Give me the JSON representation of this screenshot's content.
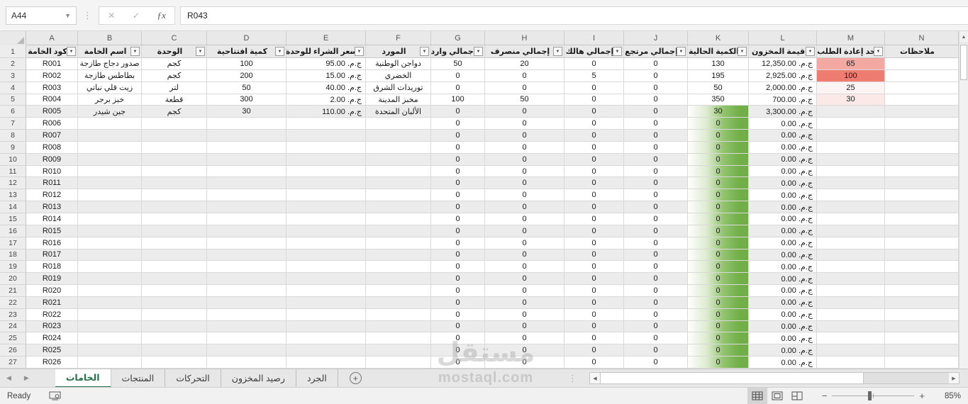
{
  "formula_bar": {
    "name_box": "A44",
    "cancel_icon": "✕",
    "enter_icon": "✓",
    "fx_icon": "ƒx",
    "formula": "R043"
  },
  "sheet": {
    "cols": [
      "A",
      "B",
      "C",
      "D",
      "E",
      "F",
      "G",
      "H",
      "I",
      "J",
      "K",
      "L",
      "M",
      "N"
    ],
    "header_row_number": "1",
    "headers": [
      {
        "col": "A",
        "label": "كود الخامة",
        "filter": true
      },
      {
        "col": "B",
        "label": "اسم الخامة",
        "filter": true
      },
      {
        "col": "C",
        "label": "الوحدة",
        "filter": true
      },
      {
        "col": "D",
        "label": "كمية افتتاحية",
        "filter": true
      },
      {
        "col": "E",
        "label": "سعر الشراء للوحدة",
        "filter": true
      },
      {
        "col": "F",
        "label": "المورد",
        "filter": true
      },
      {
        "col": "G",
        "label": "إجمالي وارد",
        "filter": true
      },
      {
        "col": "H",
        "label": "إجمالي منصرف",
        "filter": true
      },
      {
        "col": "I",
        "label": "إجمالي هالك",
        "filter": true
      },
      {
        "col": "J",
        "label": "إجمالي مرتجع",
        "filter": true
      },
      {
        "col": "K",
        "label": "الكمية الحالية",
        "filter": true
      },
      {
        "col": "L",
        "label": "قيمة المخزون",
        "filter": true
      },
      {
        "col": "M",
        "label": "حد إعادة الطلب",
        "filter": true
      },
      {
        "col": "N",
        "label": "ملاحظات",
        "filter": false
      }
    ],
    "filter_icon": "▼",
    "rows": [
      {
        "num": "2",
        "cells": [
          "R001",
          "صدور دجاج طازجة",
          "كجم",
          "100",
          "ج.م. 95.00",
          "دواجن الوطنية",
          "50",
          "20",
          "0",
          "0",
          "130",
          "ج.م. 12,350.00",
          "65",
          ""
        ],
        "k_bar": false,
        "m_bg": "#F4A8A2"
      },
      {
        "num": "3",
        "cells": [
          "R002",
          "بطاطس طازجة",
          "كجم",
          "200",
          "ج.م. 15.00",
          "الخضري",
          "0",
          "0",
          "5",
          "0",
          "195",
          "ج.م. 2,925.00",
          "100",
          ""
        ],
        "k_bar": false,
        "m_bg": "#EE7C70"
      },
      {
        "num": "4",
        "cells": [
          "R003",
          "زيت قلي نباتي",
          "لتر",
          "50",
          "ج.م. 40.00",
          "توريدات الشرق",
          "0",
          "0",
          "0",
          "0",
          "50",
          "ج.م. 2,000.00",
          "25",
          ""
        ],
        "k_bar": false,
        "m_bg": "#FCF4F3"
      },
      {
        "num": "5",
        "cells": [
          "R004",
          "خبز برجر",
          "قطعة",
          "300",
          "ج.م. 2.00",
          "مخبز المدينة",
          "100",
          "50",
          "0",
          "0",
          "350",
          "ج.م. 700.00",
          "30",
          ""
        ],
        "k_bar": false,
        "m_bg": "#FAE9E7"
      },
      {
        "num": "6",
        "cells": [
          "R005",
          "جبن شيدر",
          "كجم",
          "30",
          "ج.م. 110.00",
          "الألبان المتحدة",
          "0",
          "0",
          "0",
          "0",
          "30",
          "ج.م. 3,300.00",
          "",
          ""
        ],
        "k_bar": true,
        "m_bg": ""
      },
      {
        "num": "7",
        "cells": [
          "R006",
          "",
          "",
          "",
          "",
          "",
          "0",
          "0",
          "0",
          "0",
          "0",
          "ج.م. 0.00",
          "",
          ""
        ],
        "k_bar": true,
        "m_bg": ""
      },
      {
        "num": "8",
        "cells": [
          "R007",
          "",
          "",
          "",
          "",
          "",
          "0",
          "0",
          "0",
          "0",
          "0",
          "ج.م. 0.00",
          "",
          ""
        ],
        "k_bar": true,
        "m_bg": ""
      },
      {
        "num": "9",
        "cells": [
          "R008",
          "",
          "",
          "",
          "",
          "",
          "0",
          "0",
          "0",
          "0",
          "0",
          "ج.م. 0.00",
          "",
          ""
        ],
        "k_bar": true,
        "m_bg": ""
      },
      {
        "num": "10",
        "cells": [
          "R009",
          "",
          "",
          "",
          "",
          "",
          "0",
          "0",
          "0",
          "0",
          "0",
          "ج.م. 0.00",
          "",
          ""
        ],
        "k_bar": true,
        "m_bg": ""
      },
      {
        "num": "11",
        "cells": [
          "R010",
          "",
          "",
          "",
          "",
          "",
          "0",
          "0",
          "0",
          "0",
          "0",
          "ج.م. 0.00",
          "",
          ""
        ],
        "k_bar": true,
        "m_bg": ""
      },
      {
        "num": "12",
        "cells": [
          "R011",
          "",
          "",
          "",
          "",
          "",
          "0",
          "0",
          "0",
          "0",
          "0",
          "ج.م. 0.00",
          "",
          ""
        ],
        "k_bar": true,
        "m_bg": ""
      },
      {
        "num": "13",
        "cells": [
          "R012",
          "",
          "",
          "",
          "",
          "",
          "0",
          "0",
          "0",
          "0",
          "0",
          "ج.م. 0.00",
          "",
          ""
        ],
        "k_bar": true,
        "m_bg": ""
      },
      {
        "num": "14",
        "cells": [
          "R013",
          "",
          "",
          "",
          "",
          "",
          "0",
          "0",
          "0",
          "0",
          "0",
          "ج.م. 0.00",
          "",
          ""
        ],
        "k_bar": true,
        "m_bg": ""
      },
      {
        "num": "15",
        "cells": [
          "R014",
          "",
          "",
          "",
          "",
          "",
          "0",
          "0",
          "0",
          "0",
          "0",
          "ج.م. 0.00",
          "",
          ""
        ],
        "k_bar": true,
        "m_bg": ""
      },
      {
        "num": "16",
        "cells": [
          "R015",
          "",
          "",
          "",
          "",
          "",
          "0",
          "0",
          "0",
          "0",
          "0",
          "ج.م. 0.00",
          "",
          ""
        ],
        "k_bar": true,
        "m_bg": ""
      },
      {
        "num": "17",
        "cells": [
          "R016",
          "",
          "",
          "",
          "",
          "",
          "0",
          "0",
          "0",
          "0",
          "0",
          "ج.م. 0.00",
          "",
          ""
        ],
        "k_bar": true,
        "m_bg": ""
      },
      {
        "num": "18",
        "cells": [
          "R017",
          "",
          "",
          "",
          "",
          "",
          "0",
          "0",
          "0",
          "0",
          "0",
          "ج.م. 0.00",
          "",
          ""
        ],
        "k_bar": true,
        "m_bg": ""
      },
      {
        "num": "19",
        "cells": [
          "R018",
          "",
          "",
          "",
          "",
          "",
          "0",
          "0",
          "0",
          "0",
          "0",
          "ج.م. 0.00",
          "",
          ""
        ],
        "k_bar": true,
        "m_bg": ""
      },
      {
        "num": "20",
        "cells": [
          "R019",
          "",
          "",
          "",
          "",
          "",
          "0",
          "0",
          "0",
          "0",
          "0",
          "ج.م. 0.00",
          "",
          ""
        ],
        "k_bar": true,
        "m_bg": ""
      },
      {
        "num": "21",
        "cells": [
          "R020",
          "",
          "",
          "",
          "",
          "",
          "0",
          "0",
          "0",
          "0",
          "0",
          "ج.م. 0.00",
          "",
          ""
        ],
        "k_bar": true,
        "m_bg": ""
      },
      {
        "num": "22",
        "cells": [
          "R021",
          "",
          "",
          "",
          "",
          "",
          "0",
          "0",
          "0",
          "0",
          "0",
          "ج.م. 0.00",
          "",
          ""
        ],
        "k_bar": true,
        "m_bg": ""
      },
      {
        "num": "23",
        "cells": [
          "R022",
          "",
          "",
          "",
          "",
          "",
          "0",
          "0",
          "0",
          "0",
          "0",
          "ج.م. 0.00",
          "",
          ""
        ],
        "k_bar": true,
        "m_bg": ""
      },
      {
        "num": "24",
        "cells": [
          "R023",
          "",
          "",
          "",
          "",
          "",
          "0",
          "0",
          "0",
          "0",
          "0",
          "ج.م. 0.00",
          "",
          ""
        ],
        "k_bar": true,
        "m_bg": ""
      },
      {
        "num": "25",
        "cells": [
          "R024",
          "",
          "",
          "",
          "",
          "",
          "0",
          "0",
          "0",
          "0",
          "0",
          "ج.م. 0.00",
          "",
          ""
        ],
        "k_bar": true,
        "m_bg": ""
      },
      {
        "num": "26",
        "cells": [
          "R025",
          "",
          "",
          "",
          "",
          "",
          "0",
          "0",
          "0",
          "0",
          "0",
          "ج.م. 0.00",
          "",
          ""
        ],
        "k_bar": true,
        "m_bg": ""
      },
      {
        "num": "27",
        "cells": [
          "R026",
          "",
          "",
          "",
          "",
          "",
          "0",
          "0",
          "0",
          "0",
          "0",
          "ج.م. 0.00",
          "",
          ""
        ],
        "k_bar": true,
        "m_bg": ""
      }
    ]
  },
  "tabs": {
    "prev_icon": "◀",
    "next_icon": "▶",
    "items": [
      {
        "label": "الخامات",
        "active": true
      },
      {
        "label": "المنتجات",
        "active": false
      },
      {
        "label": "التحركات",
        "active": false
      },
      {
        "label": "رصيد المخزون",
        "active": false
      },
      {
        "label": "الجرد",
        "active": false
      }
    ],
    "add_label": "+"
  },
  "watermark": {
    "logo": "مستقل",
    "domain": "mostaql.com"
  },
  "status_bar": {
    "ready": "Ready",
    "zoom_minus": "−",
    "zoom_plus": "+",
    "zoom_level": "85%"
  },
  "colors": {
    "accent_green": "#217346",
    "databar_green": "#70AD47",
    "reorder_alert_strong": "#EE7C70",
    "reorder_alert_mid": "#F4A8A2",
    "reorder_alert_light": "#FAE9E7",
    "reorder_alert_faint": "#FCF4F3"
  }
}
